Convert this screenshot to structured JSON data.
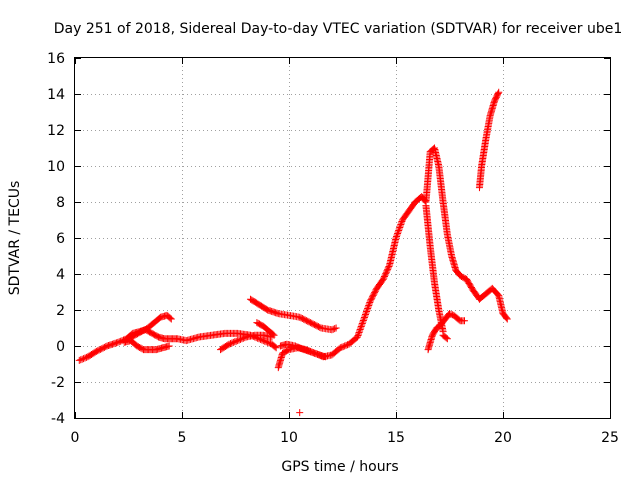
{
  "chart_data": {
    "type": "scatter",
    "title": "Day 251 of 2018, Sidereal Day-to-day VTEC variation (SDTVAR) for receiver ube1",
    "xlabel": "GPS time / hours",
    "ylabel": "SDTVAR / TECUs",
    "xlim": [
      0,
      25
    ],
    "ylim": [
      -4,
      16
    ],
    "xticks": [
      0,
      5,
      10,
      15,
      20,
      25
    ],
    "yticks": [
      -4,
      -2,
      0,
      2,
      4,
      6,
      8,
      10,
      12,
      14,
      16
    ],
    "grid": true,
    "legend": "none",
    "marker": "+",
    "color": "#ff0000",
    "series": [
      {
        "x": [
          0.2,
          0.6,
          1.0,
          1.5,
          2.0,
          2.4,
          2.7,
          3.0,
          3.3,
          3.6,
          3.9,
          4.2,
          4.5,
          4.8,
          5.2,
          5.8,
          6.4,
          7.0,
          7.6,
          8.2,
          8.8,
          9.2,
          9.4
        ],
        "y": [
          -0.8,
          -0.6,
          -0.3,
          0.0,
          0.2,
          0.4,
          0.7,
          0.8,
          0.9,
          0.7,
          0.5,
          0.4,
          0.4,
          0.4,
          0.3,
          0.5,
          0.6,
          0.7,
          0.7,
          0.6,
          0.3,
          0.1,
          -0.1
        ]
      },
      {
        "x": [
          2.5,
          2.8,
          3.1,
          3.4,
          3.7,
          4.0,
          4.3,
          4.5
        ],
        "y": [
          0.4,
          0.6,
          0.8,
          1.0,
          1.3,
          1.6,
          1.7,
          1.5
        ]
      },
      {
        "x": [
          2.3,
          2.6,
          2.9,
          3.2,
          3.5,
          3.8,
          4.1,
          4.4
        ],
        "y": [
          0.2,
          0.3,
          0.0,
          -0.2,
          -0.2,
          -0.2,
          -0.1,
          0.0
        ]
      },
      {
        "x": [
          6.8,
          7.2,
          7.6,
          8.0,
          8.4,
          8.8,
          9.2
        ],
        "y": [
          -0.2,
          0.1,
          0.3,
          0.5,
          0.6,
          0.6,
          0.5
        ]
      },
      {
        "x": [
          8.2,
          8.6,
          9.0,
          9.5,
          10.0,
          10.5,
          11.0,
          11.5,
          12.0,
          12.2
        ],
        "y": [
          2.6,
          2.3,
          2.0,
          1.8,
          1.7,
          1.6,
          1.3,
          1.0,
          0.9,
          1.0
        ]
      },
      {
        "x": [
          8.5,
          8.8,
          9.1,
          9.3
        ],
        "y": [
          1.3,
          1.1,
          0.8,
          0.6
        ]
      },
      {
        "x": [
          9.5,
          9.7,
          10.0,
          10.4,
          10.8,
          11.2,
          11.6,
          12.0,
          12.4,
          12.8,
          13.2
        ],
        "y": [
          -1.2,
          -0.4,
          -0.2,
          -0.1,
          -0.2,
          -0.4,
          -0.6,
          -0.5,
          -0.1,
          0.1,
          0.5
        ]
      },
      {
        "x": [
          9.6,
          9.9,
          10.3,
          10.7,
          11.2,
          11.7
        ],
        "y": [
          0.0,
          0.1,
          0.0,
          -0.2,
          -0.4,
          -0.6
        ]
      },
      {
        "x": [
          13.2,
          13.5,
          13.8,
          14.1,
          14.4,
          14.7,
          15.0,
          15.3,
          15.6,
          15.9,
          16.2,
          16.4,
          16.6,
          16.8,
          17.0,
          17.2,
          17.4,
          17.6,
          17.8,
          18.0,
          18.3
        ],
        "y": [
          0.5,
          1.5,
          2.5,
          3.2,
          3.7,
          4.5,
          6.0,
          7.0,
          7.5,
          8.0,
          8.3,
          8.0,
          10.8,
          11.0,
          10.0,
          8.0,
          6.2,
          5.0,
          4.2,
          3.9,
          3.7
        ]
      },
      {
        "x": [
          16.5,
          16.7,
          16.9,
          17.1,
          17.3,
          17.5,
          17.7,
          18.0,
          18.2
        ],
        "y": [
          -0.2,
          0.6,
          1.0,
          1.2,
          1.5,
          1.8,
          1.7,
          1.4,
          1.4
        ]
      },
      {
        "x": [
          16.4,
          16.6,
          16.8,
          17.0,
          17.2
        ],
        "y": [
          7.8,
          5.5,
          3.5,
          2.0,
          0.8
        ]
      },
      {
        "x": [
          17.2,
          17.4
        ],
        "y": [
          0.6,
          0.4
        ]
      },
      {
        "x": [
          18.3,
          18.6,
          18.9,
          19.2,
          19.5,
          19.8,
          20.0,
          20.2
        ],
        "y": [
          3.7,
          3.1,
          2.6,
          2.9,
          3.2,
          2.8,
          1.8,
          1.5
        ]
      },
      {
        "x": [
          18.9,
          19.0,
          19.2,
          19.4,
          19.6,
          19.8
        ],
        "y": [
          8.8,
          10.0,
          11.5,
          12.8,
          13.6,
          14.1
        ]
      },
      {
        "x": [
          10.5
        ],
        "y": [
          -3.7
        ]
      }
    ]
  }
}
